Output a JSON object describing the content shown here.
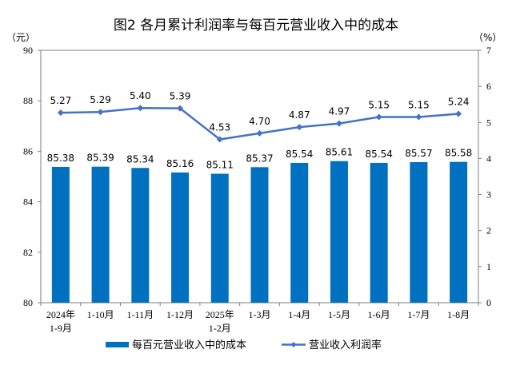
{
  "chart_data": {
    "type": "bar+line",
    "title": "图2  各月累计利润率与每百元营业收入中的成本",
    "ylabel_left": "（元）",
    "ylabel_right": "（%）",
    "ylim_left": [
      80,
      90
    ],
    "yticks_left": [
      "80",
      "82",
      "84",
      "86",
      "88",
      "90"
    ],
    "ylim_right": [
      0,
      7
    ],
    "yticks_right": [
      "0",
      "1",
      "2",
      "3",
      "4",
      "5",
      "6",
      "7"
    ],
    "categories": [
      "2024年\n1-9月",
      "1-10月",
      "1-11月",
      "1-12月",
      "2025年\n1-2月",
      "1-3月",
      "1-4月",
      "1-5月",
      "1-6月",
      "1-7月",
      "1-8月"
    ],
    "series": [
      {
        "name": "每百元营业收入中的成本",
        "type": "bar",
        "axis": "left",
        "color": "#0070c0",
        "values": [
          85.38,
          85.39,
          85.34,
          85.16,
          85.11,
          85.37,
          85.54,
          85.61,
          85.54,
          85.57,
          85.58
        ]
      },
      {
        "name": "营业收入利润率",
        "type": "line",
        "axis": "right",
        "color": "#4472c4",
        "marker": "diamond",
        "values": [
          5.27,
          5.29,
          5.4,
          5.39,
          4.53,
          4.7,
          4.87,
          4.97,
          5.15,
          5.15,
          5.24
        ]
      }
    ],
    "grid": false,
    "legend": "bottom"
  }
}
